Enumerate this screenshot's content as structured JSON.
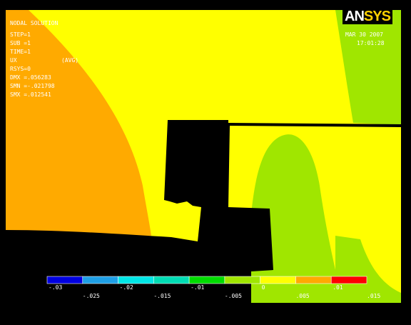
{
  "info": {
    "title": "NODAL SOLUTION",
    "step": "STEP=1",
    "sub": "SUB =1",
    "time": "TIME=1",
    "component": "UX",
    "avg": "(AVG)",
    "rsys": "RSYS=0",
    "dmx": "DMX =.056283",
    "smn": "SMN =-.021798",
    "smx": "SMX =.012541"
  },
  "logo": {
    "an": "AN",
    "sys": "SYS"
  },
  "date": "MAR 30 2007",
  "clock": "17:01:28",
  "legend": {
    "colors": [
      "#0000e0",
      "#1e9fe6",
      "#00e6e6",
      "#00dcb4",
      "#00dc00",
      "#a0e600",
      "#ffff00",
      "#ffaa00",
      "#ff0000"
    ],
    "top_labels": [
      "-.03",
      "-.02",
      "-.01",
      "0",
      ".01"
    ],
    "bottom_labels": [
      "-.025",
      "-.015",
      "-.005",
      ".005",
      ".015"
    ]
  }
}
